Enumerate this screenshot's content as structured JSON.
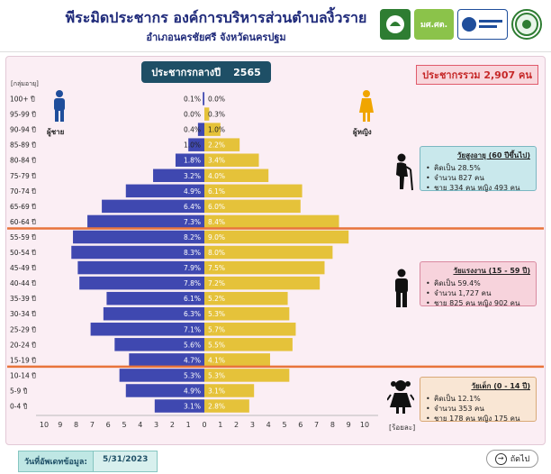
{
  "header": {
    "title": "พีระมิดประชากร องค์การบริหารส่วนตำบลงิ้วราย",
    "subtitle": "อำเภอนครชัยศรี  จังหวัดนครปฐม",
    "logo2_text": "มศ.ศต."
  },
  "year_box": {
    "label": "ประชากรกลางปี",
    "year": "2565"
  },
  "total_box": {
    "label": "ประชากรรวม 2,907 คน"
  },
  "labels": {
    "age_group": "[กลุ่มอายุ]",
    "male": "ผู้ชาย",
    "female": "ผู้หญิง",
    "unit": "[ร้อยละ]"
  },
  "info": {
    "old": {
      "title": "วัยสูงอายุ (60 ปีขึ้นไป)",
      "l1": "คิดเป็น 28.5%",
      "l2": "จำนวน 827 คน",
      "l3": "ชาย 334 คน หญิง 493 คน"
    },
    "work": {
      "title": "วัยแรงงาน (15 - 59 ปี)",
      "l1": "คิดเป็น 59.4%",
      "l2": "จำนวน 1,727 คน",
      "l3": "ชาย 825 คน หญิง 902 คน"
    },
    "child": {
      "title": "วัยเด็ก (0 - 14 ปี)",
      "l1": "คิดเป็น 12.1%",
      "l2": "จำนวน 353 คน",
      "l3": "ชาย 178 คน หญิง 175 คน"
    }
  },
  "footer": {
    "date_label": "วันที่อัพเดทข้อมูล:",
    "date_value": "5/31/2023",
    "next_label": "ถัดไป"
  },
  "colors": {
    "male": "#3f48b0",
    "female": "#e5c23a",
    "divider": "#e8743b"
  },
  "chart_data": {
    "type": "bar",
    "orientation": "horizontal-pyramid",
    "categories": [
      "100+ ปี",
      "95-99 ปี",
      "90-94 ปี",
      "85-89 ปี",
      "80-84 ปี",
      "75-79 ปี",
      "70-74 ปี",
      "65-69 ปี",
      "60-64 ปี",
      "55-59 ปี",
      "50-54 ปี",
      "45-49 ปี",
      "40-44 ปี",
      "35-39 ปี",
      "30-34 ปี",
      "25-29 ปี",
      "20-24 ปี",
      "15-19 ปี",
      "10-14 ปี",
      "5-9 ปี",
      "0-4 ปี"
    ],
    "series": [
      {
        "name": "ผู้ชาย",
        "values": [
          0.1,
          0.0,
          0.4,
          1.0,
          1.8,
          3.2,
          4.9,
          6.4,
          7.3,
          8.2,
          8.3,
          7.9,
          7.8,
          6.1,
          6.3,
          7.1,
          5.6,
          4.7,
          5.3,
          4.9,
          3.1
        ]
      },
      {
        "name": "ผู้หญิง",
        "values": [
          0.0,
          0.3,
          1.0,
          2.2,
          3.4,
          4.0,
          6.1,
          6.0,
          8.4,
          9.0,
          8.0,
          7.5,
          7.2,
          5.2,
          5.3,
          5.7,
          5.5,
          4.1,
          5.3,
          3.1,
          2.8
        ]
      }
    ],
    "xticks": [
      "10",
      "9",
      "8",
      "7",
      "6",
      "5",
      "4",
      "3",
      "2",
      "1",
      "0",
      "1",
      "2",
      "3",
      "4",
      "5",
      "6",
      "7",
      "8",
      "9",
      "10"
    ],
    "xlim": [
      -10,
      10
    ],
    "xlabel": "[ร้อยละ]",
    "ylabel": "[กลุ่มอายุ]"
  }
}
